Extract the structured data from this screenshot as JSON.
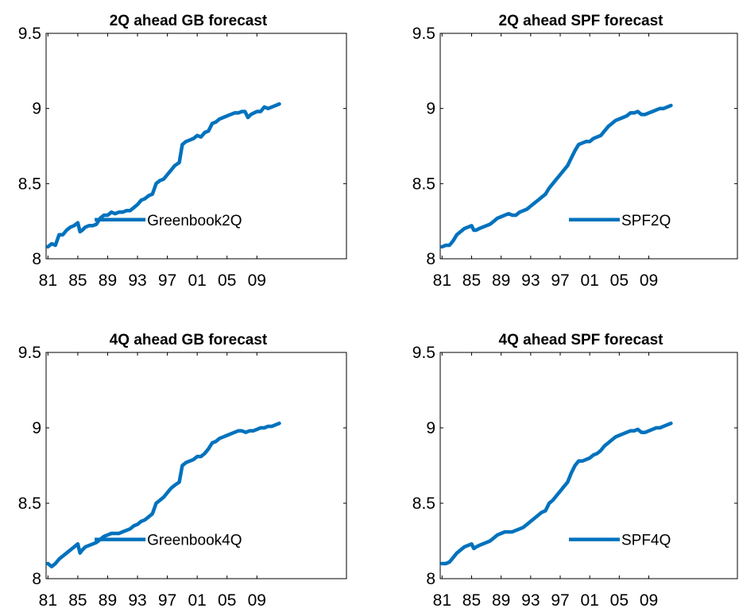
{
  "chart_data": [
    {
      "type": "line",
      "title": "2Q ahead GB forecast",
      "xlabel": "",
      "ylabel": "",
      "x_ticks": [
        "81",
        "85",
        "89",
        "93",
        "97",
        "01",
        "05",
        "09"
      ],
      "y_ticks": [
        "8",
        "8.5",
        "9",
        "9.5"
      ],
      "xlim": [
        1980.75,
        2021.0
      ],
      "ylim": [
        8,
        9.5
      ],
      "grid": false,
      "legend_position": "lower-right",
      "line_color": "#0072BD",
      "series": [
        {
          "name": "Greenbook2Q",
          "x": [
            1981.0,
            1981.5,
            1982.0,
            1982.5,
            1983.0,
            1983.5,
            1984.0,
            1984.5,
            1985.0,
            1985.3,
            1985.6,
            1986.0,
            1986.5,
            1987.0,
            1987.5,
            1988.0,
            1988.5,
            1989.0,
            1989.5,
            1990.0,
            1990.5,
            1991.0,
            1991.5,
            1992.0,
            1992.5,
            1993.0,
            1993.5,
            1994.0,
            1994.5,
            1995.0,
            1995.5,
            1996.0,
            1996.5,
            1997.0,
            1997.5,
            1998.0,
            1998.3,
            1998.6,
            1999.0,
            1999.5,
            2000.0,
            2000.5,
            2001.0,
            2001.5,
            2002.0,
            2002.5,
            2003.0,
            2003.5,
            2004.0,
            2004.5,
            2005.0,
            2005.5,
            2006.0,
            2006.5,
            2007.0,
            2007.4,
            2007.8,
            2008.2,
            2008.6,
            2009.0,
            2009.5,
            2010.0,
            2010.5,
            2011.0,
            2011.5,
            2012.0
          ],
          "values": [
            8.08,
            8.1,
            8.09,
            8.16,
            8.16,
            8.19,
            8.21,
            8.22,
            8.24,
            8.18,
            8.19,
            8.21,
            8.22,
            8.22,
            8.23,
            8.27,
            8.29,
            8.29,
            8.31,
            8.3,
            8.31,
            8.31,
            8.32,
            8.32,
            8.34,
            8.36,
            8.39,
            8.4,
            8.42,
            8.43,
            8.5,
            8.52,
            8.53,
            8.56,
            8.59,
            8.62,
            8.63,
            8.64,
            8.76,
            8.78,
            8.79,
            8.8,
            8.82,
            8.81,
            8.84,
            8.85,
            8.9,
            8.91,
            8.93,
            8.94,
            8.95,
            8.96,
            8.97,
            8.97,
            8.98,
            8.98,
            8.94,
            8.96,
            8.97,
            8.98,
            8.98,
            9.01,
            9.0,
            9.01,
            9.02,
            9.03
          ]
        }
      ]
    },
    {
      "type": "line",
      "title": "2Q ahead SPF forecast",
      "xlabel": "",
      "ylabel": "",
      "x_ticks": [
        "81",
        "85",
        "89",
        "93",
        "97",
        "01",
        "05",
        "09"
      ],
      "y_ticks": [
        "8",
        "8.5",
        "9",
        "9.5"
      ],
      "xlim": [
        1980.75,
        2021.0
      ],
      "ylim": [
        8,
        9.5
      ],
      "grid": false,
      "legend_position": "lower-right",
      "line_color": "#0072BD",
      "series": [
        {
          "name": "SPF2Q",
          "x": [
            1981.0,
            1981.5,
            1982.0,
            1982.5,
            1983.0,
            1983.5,
            1984.0,
            1984.5,
            1985.0,
            1985.3,
            1985.6,
            1986.0,
            1986.5,
            1987.0,
            1987.5,
            1988.0,
            1988.5,
            1989.0,
            1989.5,
            1990.0,
            1990.5,
            1991.0,
            1991.5,
            1992.0,
            1992.5,
            1993.0,
            1993.5,
            1994.0,
            1994.5,
            1995.0,
            1995.5,
            1996.0,
            1996.5,
            1997.0,
            1997.5,
            1998.0,
            1998.5,
            1999.0,
            1999.5,
            2000.0,
            2000.5,
            2001.0,
            2001.5,
            2002.0,
            2002.5,
            2003.0,
            2003.5,
            2004.0,
            2004.5,
            2005.0,
            2005.5,
            2006.0,
            2006.5,
            2007.0,
            2007.5,
            2008.0,
            2008.5,
            2009.0,
            2009.5,
            2010.0,
            2010.5,
            2011.0,
            2011.5,
            2012.0
          ],
          "values": [
            8.08,
            8.09,
            8.09,
            8.12,
            8.16,
            8.18,
            8.2,
            8.21,
            8.22,
            8.19,
            8.19,
            8.2,
            8.21,
            8.22,
            8.23,
            8.25,
            8.27,
            8.28,
            8.29,
            8.3,
            8.29,
            8.29,
            8.31,
            8.32,
            8.33,
            8.35,
            8.37,
            8.39,
            8.41,
            8.43,
            8.47,
            8.5,
            8.53,
            8.56,
            8.59,
            8.62,
            8.67,
            8.72,
            8.76,
            8.77,
            8.78,
            8.78,
            8.8,
            8.81,
            8.82,
            8.85,
            8.88,
            8.9,
            8.92,
            8.93,
            8.94,
            8.95,
            8.97,
            8.97,
            8.98,
            8.96,
            8.96,
            8.97,
            8.98,
            8.99,
            9.0,
            9.0,
            9.01,
            9.02
          ]
        }
      ]
    },
    {
      "type": "line",
      "title": "4Q ahead GB forecast",
      "xlabel": "",
      "ylabel": "",
      "x_ticks": [
        "81",
        "85",
        "89",
        "93",
        "97",
        "01",
        "05",
        "09"
      ],
      "y_ticks": [
        "8",
        "8.5",
        "9",
        "9.5"
      ],
      "xlim": [
        1980.75,
        2021.0
      ],
      "ylim": [
        8,
        9.5
      ],
      "grid": false,
      "legend_position": "lower-right",
      "line_color": "#0072BD",
      "series": [
        {
          "name": "Greenbook4Q",
          "x": [
            1981.0,
            1981.5,
            1982.0,
            1982.5,
            1983.0,
            1983.5,
            1984.0,
            1984.5,
            1985.0,
            1985.3,
            1985.6,
            1986.0,
            1986.5,
            1987.0,
            1987.5,
            1988.0,
            1988.5,
            1989.0,
            1989.5,
            1990.0,
            1990.5,
            1991.0,
            1991.5,
            1992.0,
            1992.5,
            1993.0,
            1993.5,
            1994.0,
            1994.5,
            1995.0,
            1995.5,
            1996.0,
            1996.5,
            1997.0,
            1997.5,
            1998.0,
            1998.3,
            1998.6,
            1999.0,
            1999.5,
            2000.0,
            2000.5,
            2001.0,
            2001.5,
            2002.0,
            2002.5,
            2003.0,
            2003.5,
            2004.0,
            2004.5,
            2005.0,
            2005.5,
            2006.0,
            2006.5,
            2007.0,
            2007.5,
            2008.0,
            2008.5,
            2009.0,
            2009.5,
            2010.0,
            2010.5,
            2011.0,
            2011.5,
            2012.0
          ],
          "values": [
            8.1,
            8.08,
            8.1,
            8.13,
            8.15,
            8.17,
            8.19,
            8.21,
            8.23,
            8.17,
            8.19,
            8.21,
            8.22,
            8.23,
            8.24,
            8.26,
            8.28,
            8.29,
            8.3,
            8.3,
            8.3,
            8.31,
            8.32,
            8.33,
            8.35,
            8.36,
            8.38,
            8.39,
            8.41,
            8.43,
            8.5,
            8.52,
            8.54,
            8.57,
            8.6,
            8.62,
            8.63,
            8.64,
            8.75,
            8.77,
            8.78,
            8.79,
            8.81,
            8.81,
            8.83,
            8.86,
            8.9,
            8.91,
            8.93,
            8.94,
            8.95,
            8.96,
            8.97,
            8.98,
            8.98,
            8.97,
            8.98,
            8.98,
            8.99,
            9.0,
            9.0,
            9.01,
            9.01,
            9.02,
            9.03
          ]
        }
      ]
    },
    {
      "type": "line",
      "title": "4Q ahead SPF forecast",
      "xlabel": "",
      "ylabel": "",
      "x_ticks": [
        "81",
        "85",
        "89",
        "93",
        "97",
        "01",
        "05",
        "09"
      ],
      "y_ticks": [
        "8",
        "8.5",
        "9",
        "9.5"
      ],
      "xlim": [
        1980.75,
        2021.0
      ],
      "ylim": [
        8,
        9.5
      ],
      "grid": false,
      "legend_position": "lower-right",
      "line_color": "#0072BD",
      "series": [
        {
          "name": "SPF4Q",
          "x": [
            1981.0,
            1981.5,
            1982.0,
            1982.5,
            1983.0,
            1983.5,
            1984.0,
            1984.5,
            1985.0,
            1985.3,
            1985.6,
            1986.0,
            1986.5,
            1987.0,
            1987.5,
            1988.0,
            1988.5,
            1989.0,
            1989.5,
            1990.0,
            1990.5,
            1991.0,
            1991.5,
            1992.0,
            1992.5,
            1993.0,
            1993.5,
            1994.0,
            1994.5,
            1995.0,
            1995.5,
            1996.0,
            1996.5,
            1997.0,
            1997.5,
            1998.0,
            1998.5,
            1999.0,
            1999.5,
            2000.0,
            2000.5,
            2001.0,
            2001.5,
            2002.0,
            2002.5,
            2003.0,
            2003.5,
            2004.0,
            2004.5,
            2005.0,
            2005.5,
            2006.0,
            2006.5,
            2007.0,
            2007.5,
            2008.0,
            2008.5,
            2009.0,
            2009.5,
            2010.0,
            2010.5,
            2011.0,
            2011.5,
            2012.0
          ],
          "values": [
            8.1,
            8.1,
            8.11,
            8.14,
            8.17,
            8.19,
            8.21,
            8.22,
            8.23,
            8.2,
            8.21,
            8.22,
            8.23,
            8.24,
            8.25,
            8.27,
            8.29,
            8.3,
            8.31,
            8.31,
            8.31,
            8.32,
            8.33,
            8.34,
            8.36,
            8.38,
            8.4,
            8.42,
            8.44,
            8.45,
            8.5,
            8.52,
            8.55,
            8.58,
            8.61,
            8.64,
            8.7,
            8.75,
            8.78,
            8.78,
            8.79,
            8.8,
            8.82,
            8.83,
            8.85,
            8.88,
            8.9,
            8.92,
            8.94,
            8.95,
            8.96,
            8.97,
            8.98,
            8.98,
            8.99,
            8.97,
            8.97,
            8.98,
            8.99,
            9.0,
            9.0,
            9.01,
            9.02,
            9.03
          ]
        }
      ]
    }
  ]
}
